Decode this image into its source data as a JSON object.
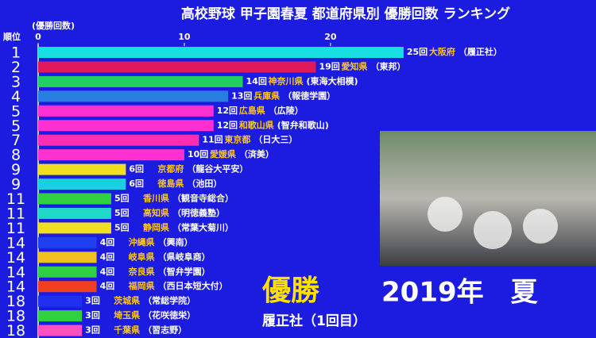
{
  "chart_data": {
    "type": "bar",
    "orientation": "horizontal",
    "title": "高校野球 甲子園春夏 都道府県別 優勝回数 ランキング",
    "rank_header": "順位",
    "x_label": "(優勝回数)",
    "ranks": [
      "1",
      "2",
      "3",
      "4",
      "5",
      "5",
      "7",
      "8",
      "9",
      "9",
      "11",
      "11",
      "11",
      "14",
      "14",
      "14",
      "14",
      "18",
      "18",
      "18"
    ],
    "categories": [
      "大阪府",
      "愛知県",
      "神奈川県",
      "兵庫県",
      "広島県",
      "和歌山県",
      "東京都",
      "愛媛県",
      "京都府",
      "徳島県",
      "香川県",
      "高知県",
      "静岡県",
      "沖縄県",
      "岐阜県",
      "奈良県",
      "福岡県",
      "茨城県",
      "埼玉県",
      "千葉県"
    ],
    "schools": [
      "（履正社）",
      "（東邦）",
      "(東海大相模)",
      "（報徳学園）",
      "（広陵）",
      "(智弁和歌山)",
      "（日大三）",
      "（済美）",
      "（龍谷大平安）",
      "（池田）",
      "（観音寺総合）",
      "（明徳義塾）",
      "（常葉大菊川）",
      "（興南）",
      "（県岐阜商）",
      "（智弁学園）",
      "（西日本短大付）",
      "（常総学院）",
      "（花咲徳栄）",
      "（習志野）"
    ],
    "values": [
      25,
      19,
      14,
      13,
      12,
      12,
      11,
      10,
      6,
      6,
      5,
      5,
      5,
      4,
      4,
      4,
      4,
      3,
      3,
      3
    ],
    "value_labels": [
      "25回",
      "19回",
      "14回",
      "13回",
      "12回",
      "12回",
      "11回",
      "10回",
      "6回",
      "6回",
      "5回",
      "5回",
      "5回",
      "4回",
      "4回",
      "4回",
      "4回",
      "3回",
      "3回",
      "3回"
    ],
    "colors": [
      "#19e0e0",
      "#e01a5a",
      "#20d060",
      "#2a7de0",
      "#ff2fd0",
      "#ff2fd0",
      "#ff2fb0",
      "#ff2fd0",
      "#f0e020",
      "#19d0e0",
      "#30d040",
      "#20d8c8",
      "#f0e020",
      "#2040f0",
      "#f0c020",
      "#30d040",
      "#f04020",
      "#2030f0",
      "#30d040",
      "#ff4fc0"
    ],
    "xlim": [
      0,
      38
    ],
    "xticks": [
      0,
      10,
      20
    ],
    "winner_label": "優勝",
    "winner": "履正社（1回目）",
    "year": "2019年　夏"
  }
}
